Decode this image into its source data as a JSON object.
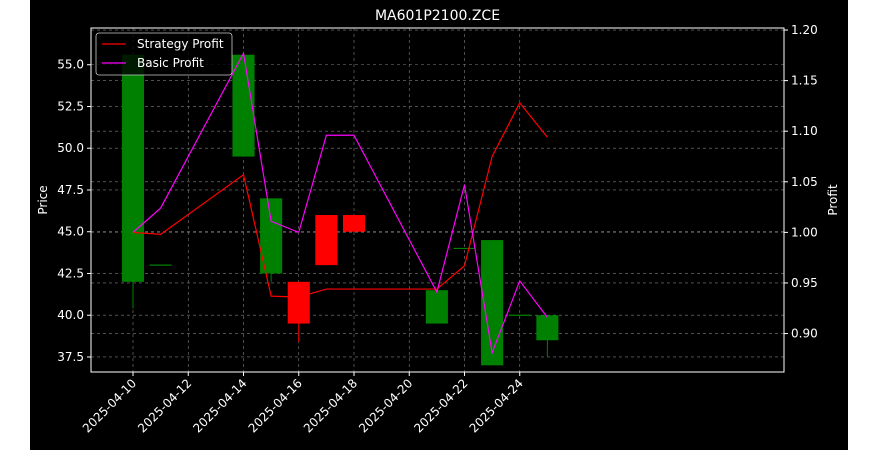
{
  "chart_data": {
    "type": "candlestick-with-lines",
    "title": "MA601P2100.ZCE",
    "ylabel_left": "Price",
    "ylabel_right": "Profit",
    "xlabel": "",
    "grid": true,
    "legend_position": "top-left",
    "background_color": "#000000",
    "x_tick_labels": [
      "2025-04-10",
      "2025-04-12",
      "2025-04-14",
      "2025-04-16",
      "2025-04-18",
      "2025-04-20",
      "2025-04-22",
      "2025-04-24"
    ],
    "y_left_ticks": [
      "37.5",
      "40.0",
      "42.5",
      "45.0",
      "47.5",
      "50.0",
      "52.5",
      "55.0"
    ],
    "y_right_ticks": [
      "0.90",
      "0.95",
      "1.00",
      "1.05",
      "1.10",
      "1.15",
      "1.20"
    ],
    "ylim_left": [
      36.6,
      57.2
    ],
    "ylim_right": [
      0.862,
      1.202
    ],
    "candles": [
      {
        "date": "2025-04-10",
        "open": 42.0,
        "close": 55.6,
        "high": 55.6,
        "low": 40.4
      },
      {
        "date": "2025-04-11",
        "open": 43.0,
        "close": 43.0,
        "high": 43.0,
        "low": 43.0
      },
      {
        "date": "2025-04-14",
        "open": 49.5,
        "close": 55.6,
        "high": 55.6,
        "low": 49.5
      },
      {
        "date": "2025-04-15",
        "open": 42.5,
        "close": 47.0,
        "high": 47.0,
        "low": 42.0
      },
      {
        "date": "2025-04-16",
        "open": 42.0,
        "close": 39.5,
        "high": 42.0,
        "low": 38.4
      },
      {
        "date": "2025-04-17",
        "open": 46.0,
        "close": 43.0,
        "high": 46.0,
        "low": 43.0
      },
      {
        "date": "2025-04-18",
        "open": 46.0,
        "close": 45.0,
        "high": 46.0,
        "low": 45.0
      },
      {
        "date": "2025-04-21",
        "open": 39.5,
        "close": 41.5,
        "high": 41.5,
        "low": 39.5
      },
      {
        "date": "2025-04-22",
        "open": 44.0,
        "close": 44.0,
        "high": 44.0,
        "low": 44.0
      },
      {
        "date": "2025-04-23",
        "open": 37.0,
        "close": 44.5,
        "high": 44.5,
        "low": 37.0
      },
      {
        "date": "2025-04-24",
        "open": 40.0,
        "close": 40.0,
        "high": 40.0,
        "low": 40.0
      },
      {
        "date": "2025-04-25",
        "open": 38.5,
        "close": 40.0,
        "high": 40.0,
        "low": 37.5
      }
    ],
    "series": [
      {
        "name": "Strategy Profit",
        "color": "#ff0000",
        "dates": [
          "2025-04-10",
          "2025-04-11",
          "2025-04-14",
          "2025-04-15",
          "2025-04-16",
          "2025-04-17",
          "2025-04-18",
          "2025-04-21",
          "2025-04-22",
          "2025-04-23",
          "2025-04-24",
          "2025-04-25"
        ],
        "values": [
          1.0,
          0.998,
          1.057,
          0.937,
          0.936,
          0.944,
          0.944,
          0.944,
          0.967,
          1.075,
          1.128,
          1.094
        ]
      },
      {
        "name": "Basic Profit",
        "color": "#ff00ff",
        "dates": [
          "2025-04-10",
          "2025-04-11",
          "2025-04-14",
          "2025-04-15",
          "2025-04-16",
          "2025-04-17",
          "2025-04-18",
          "2025-04-21",
          "2025-04-22",
          "2025-04-23",
          "2025-04-24",
          "2025-04-25"
        ],
        "values": [
          1.0,
          1.024,
          1.177,
          1.011,
          1.0,
          1.096,
          1.096,
          0.941,
          1.047,
          0.881,
          0.952,
          0.916
        ]
      }
    ],
    "colors": {
      "up": "#008000",
      "down": "#ff0000",
      "axes": "#ffffff",
      "grid": "#808080"
    }
  }
}
